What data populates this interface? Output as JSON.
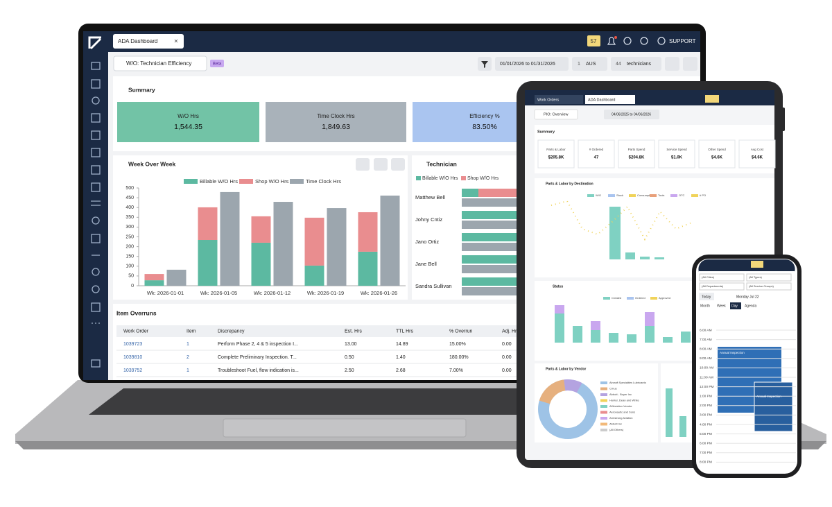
{
  "laptop": {
    "tab": "ADA Dashboard",
    "notification_count": "57",
    "support": "SUPPORT",
    "report": "W/O: Technician Efficiency",
    "badge": "Beta",
    "date_range": "01/01/2026 to 01/31/2026",
    "location_count": "1",
    "location": "AUS",
    "tech_count": "44",
    "tech_label": "technicians",
    "summary_title": "Summary",
    "kpis": [
      {
        "label": "W/O Hrs",
        "value": "1,544.35"
      },
      {
        "label": "Time Clock Hrs",
        "value": "1,849.63"
      },
      {
        "label": "Efficiency %",
        "value": "83.50%"
      }
    ],
    "technician_title": "Technician",
    "technician_legend": [
      "Billable W/O Hrs",
      "Shop W/O Hrs"
    ],
    "technicians": [
      "Matthew Bell",
      "Johny Cntiz",
      "Jano Ortiz",
      "Jane Bell",
      "Sandra Sullivan"
    ],
    "overruns": {
      "title": "Item Overruns",
      "columns": [
        "Work Order",
        "Item",
        "Discrepancy",
        "Est. Hrs",
        "TTL Hrs",
        "% Overrun",
        "Adj. Hrs"
      ],
      "rows": [
        [
          "1039723",
          "1",
          "Perform Phase 2, 4 & 5 inspection I...",
          "13.00",
          "14.89",
          "15.00%",
          "0.00"
        ],
        [
          "1039810",
          "2",
          "Complete Preliminary Inspection. T...",
          "0.50",
          "1.40",
          "180.00%",
          "0.00"
        ],
        [
          "1039752",
          "1",
          "Troubleshoot Fuel, flow indication is...",
          "2.50",
          "2.68",
          "7.00%",
          "0.00"
        ]
      ]
    }
  },
  "chart_data": {
    "type": "bar",
    "title": "Week Over Week",
    "categories": [
      "Wk: 2026-01-01",
      "Wk: 2026-01-05",
      "Wk: 2026-01-12",
      "Wk: 2026-01-19",
      "Wk: 2026-01-26"
    ],
    "series": [
      {
        "name": "Billable W/O Hrs",
        "color": "#5cb9a1",
        "values": [
          28,
          234,
          220,
          103,
          174
        ]
      },
      {
        "name": "Shop W/O Hrs",
        "color": "#e98d8f",
        "values": [
          32,
          167,
          135,
          245,
          202
        ]
      },
      {
        "name": "Time Clock Hrs",
        "color": "#9ca6ae",
        "values": [
          82,
          479,
          429,
          397,
          461
        ]
      }
    ],
    "groups": [
      [
        0,
        1
      ],
      [
        2
      ]
    ],
    "ylim": [
      0,
      500
    ],
    "yticks": [
      0,
      50,
      100,
      150,
      200,
      250,
      300,
      350,
      400,
      450,
      500
    ],
    "grid": false
  },
  "tablet": {
    "tabs": [
      "Work Orders",
      "ADA Dashboard"
    ],
    "report": "PIO: Overview",
    "date_range": "04/06/2025 to 04/06/2026",
    "summary_title": "Summary",
    "kpis": [
      {
        "label": "Parts & Labor",
        "value": "$205.8K"
      },
      {
        "label": "# Ordered",
        "value": "47"
      },
      {
        "label": "Parts Spend",
        "value": "$204.8K"
      },
      {
        "label": "Service Spend",
        "value": "$1.0K"
      },
      {
        "label": "Other Spend",
        "value": "$4.6K"
      },
      {
        "label": "Avg Cost",
        "value": "$4.6K"
      }
    ],
    "destination_title": "Parts & Labor by Destination",
    "destination_legend": [
      "W/O",
      "Stock",
      "Consumption",
      "Tools",
      "OTC",
      "# PO"
    ],
    "status_title": "Status",
    "status_legend": [
      "Created",
      "Ordered",
      "Approved"
    ],
    "vendor_title": "Parts & Labor by Vendor",
    "vendors": [
      "Aircraft Specialties Lubricants",
      "Cirrus",
      "Abbott - Boyer Inc",
      "Hunter, Dean and White",
      "AVAviation Vendor",
      "Aeronautic and Sons",
      "Armstrong Aviation",
      "Abbott Inc",
      "(All Others)"
    ]
  },
  "phone": {
    "filters": [
      "(All Cities)",
      "(All Types)",
      "(All Departments)",
      "(All Service Groups)"
    ],
    "today": "Today",
    "date": "Monday Jul 22",
    "views": [
      "Month",
      "Week",
      "Day",
      "Agenda"
    ],
    "times": [
      "6:00 AM",
      "7:00 AM",
      "8:00 AM",
      "9:00 AM",
      "10:00 AM",
      "11:00 AM",
      "12:00 PM",
      "1:00 PM",
      "2:00 PM",
      "3:00 PM",
      "4:00 PM",
      "5:00 PM",
      "6:00 PM",
      "7:00 PM",
      "8:00 PM"
    ],
    "events": [
      "Annual Inspection",
      "Annual Inspection"
    ]
  }
}
